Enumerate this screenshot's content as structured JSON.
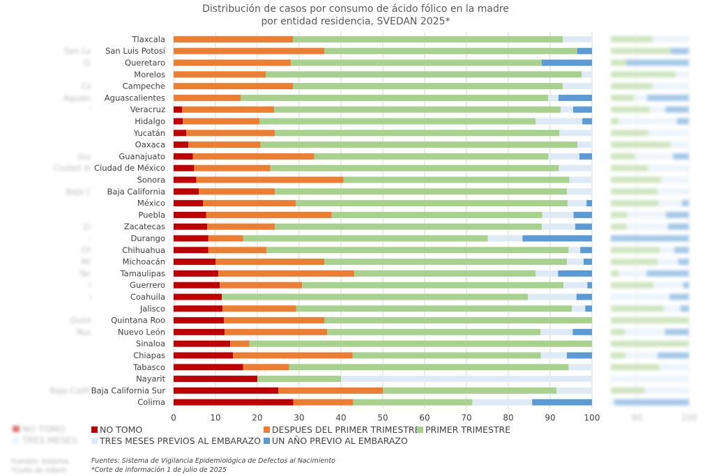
{
  "chart_data": {
    "type": "bar",
    "orientation": "horizontal",
    "stacked": true,
    "title": "Distribución de casos por consumo de ácido fólico en la madre",
    "subtitle": "por entidad residencia, SVEDAN 2025*",
    "xlabel": "",
    "ylabel": "",
    "xlim": [
      0,
      100
    ],
    "xticks": [
      0,
      10,
      20,
      30,
      40,
      50,
      60,
      70,
      80,
      90,
      100
    ],
    "grid": true,
    "legend_position": "bottom",
    "categories": [
      "Tlaxcala",
      "San Luis Potosí",
      "Queretaro",
      "Morelos",
      "Campeche",
      "Aguascalientes",
      "Veracruz",
      "Hidalgo",
      "Yucatán",
      "Oaxaca",
      "Guanajuato",
      "Ciudad de México",
      "Sonora",
      "Baja California",
      "México",
      "Puebla",
      "Zacatecas",
      "Durango",
      "Chihuahua",
      "Michoacán",
      "Tamaulipas",
      "Guerrero",
      "Coahuila",
      "Jalisco",
      "Quintana Roo",
      "Nuevo León",
      "Sinaloa",
      "Chiapas",
      "Tabasco",
      "Nayarit",
      "Baja California Sur",
      "Colima"
    ],
    "series": [
      {
        "name": "NO TOMO",
        "color": "#C00000",
        "values": [
          0,
          0,
          0,
          0,
          0,
          0,
          2,
          2.2,
          3,
          3.5,
          4.6,
          4.9,
          5.4,
          6,
          7,
          7.8,
          8,
          8.3,
          8.3,
          10,
          10.7,
          11,
          11.5,
          11.7,
          12,
          12.2,
          13.5,
          14.2,
          16.6,
          20,
          25,
          28.6
        ]
      },
      {
        "name": "DESPUES DEL PRIMER TRIMESTRE",
        "color": "#ED7D31",
        "values": [
          28.5,
          36,
          28,
          22,
          28.5,
          16,
          22,
          18.3,
          21.2,
          17.3,
          29,
          18.2,
          35.2,
          18.2,
          22.2,
          30,
          16.2,
          8.3,
          13.9,
          26,
          32.5,
          19.7,
          0,
          17.6,
          24,
          24.5,
          4.6,
          28.6,
          11,
          0,
          25,
          14.3
        ]
      },
      {
        "name": "PRIMER TRIMESTRE",
        "color": "#A9D18E",
        "values": [
          64.5,
          60.5,
          60,
          75.5,
          64.5,
          73.5,
          68.5,
          66,
          68,
          75.7,
          56,
          69,
          54,
          69.8,
          65,
          50.3,
          63.8,
          58.5,
          72.2,
          58,
          43.3,
          62.5,
          73.2,
          65.9,
          64,
          51,
          81.9,
          45,
          66.8,
          20,
          41.5,
          28.5
        ]
      },
      {
        "name": "TRES MESES PREVIOS AL EMBARAZO",
        "color": "#DEEBF7",
        "values": [
          7,
          0,
          0,
          2.5,
          7,
          2.5,
          3,
          11.2,
          7.8,
          3.5,
          7.4,
          7.9,
          5.4,
          6,
          4.5,
          7.5,
          8,
          8.3,
          2.8,
          4,
          5.4,
          5.7,
          11.6,
          3.2,
          0,
          7.7,
          0,
          6.2,
          5.6,
          60,
          8.5,
          14.3
        ]
      },
      {
        "name": "UN AÑO PREVIO AL EMBARAZO",
        "color": "#5B9BD5",
        "values": [
          0,
          3.5,
          12,
          0,
          0,
          8,
          4.5,
          2.3,
          0,
          0,
          3,
          0,
          0,
          0,
          1.3,
          4.4,
          4,
          16.6,
          2.8,
          2,
          8.1,
          1.1,
          3.7,
          1.6,
          0,
          4.6,
          0,
          6,
          0,
          0,
          0,
          14.3
        ]
      }
    ]
  },
  "legend": {
    "items": [
      {
        "label": "NO TOMO",
        "color": "#C00000"
      },
      {
        "label": "DESPUES DEL PRIMER TRIMESTRE",
        "color": "#ED7D31"
      },
      {
        "label": "PRIMER TRIMESTRE",
        "color": "#A9D18E"
      },
      {
        "label": "TRES MESES PREVIOS AL EMBARAZO",
        "color": "#DEEBF7"
      },
      {
        "label": "UN AÑO PREVIO AL EMBARAZO",
        "color": "#5B9BD5"
      }
    ]
  },
  "footnotes": {
    "source": "Fuentes: Sistema de Vigilancia Epidemiológica de Defectos al Nacimiento",
    "cutoff": "*Corte de información  1 de julio de 2025"
  },
  "ghost": {
    "left_legend": [
      "NO TOMO",
      "TRES MESES"
    ],
    "left_notes": [
      "Fuentes: Sistema",
      "*Corte de inform"
    ],
    "right_ticks": [
      "90",
      "100"
    ]
  }
}
